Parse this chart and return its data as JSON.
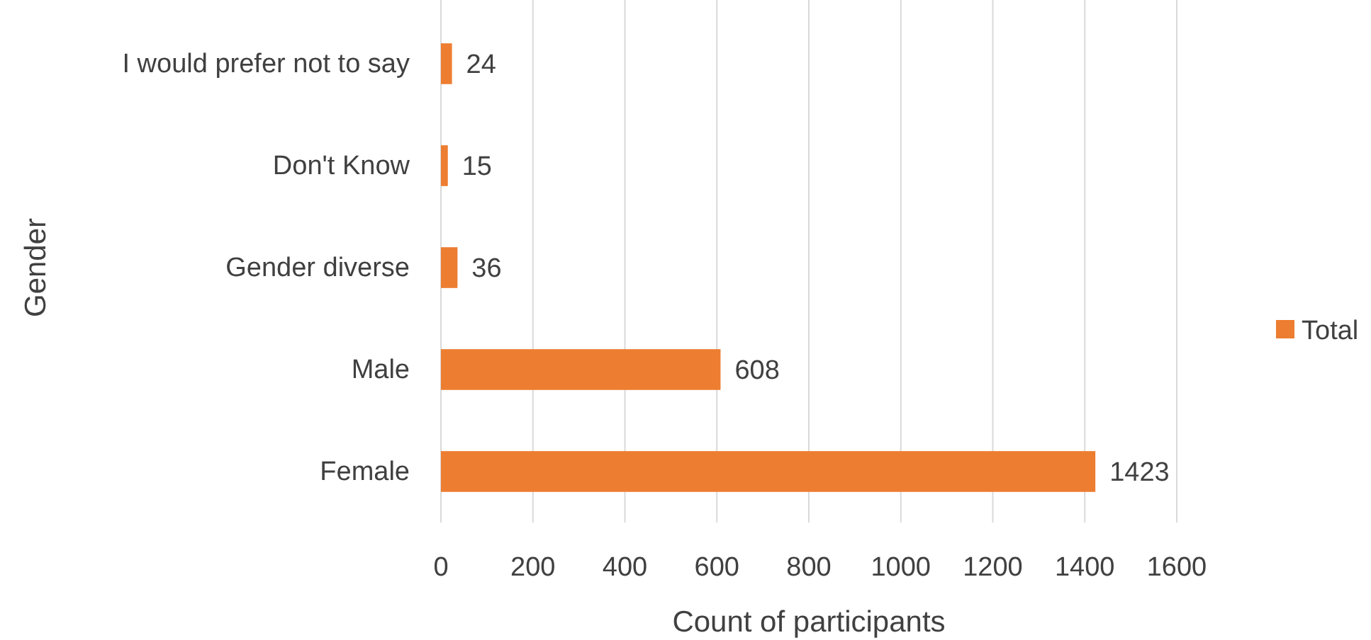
{
  "chart_data": {
    "type": "bar",
    "orientation": "horizontal",
    "xlabel": "Count of participants",
    "ylabel": "Gender",
    "categories": [
      "I would prefer not to say",
      "Don't Know",
      "Gender diverse",
      "Male",
      "Female"
    ],
    "series": [
      {
        "name": "Total",
        "color": "#ed7d31",
        "values": [
          24,
          15,
          36,
          608,
          1423
        ]
      }
    ],
    "xlim": [
      0,
      1600
    ],
    "xticks": [
      0,
      200,
      400,
      600,
      800,
      1000,
      1200,
      1400,
      1600
    ],
    "grid": "x",
    "legend": "right",
    "data_labels": true
  }
}
